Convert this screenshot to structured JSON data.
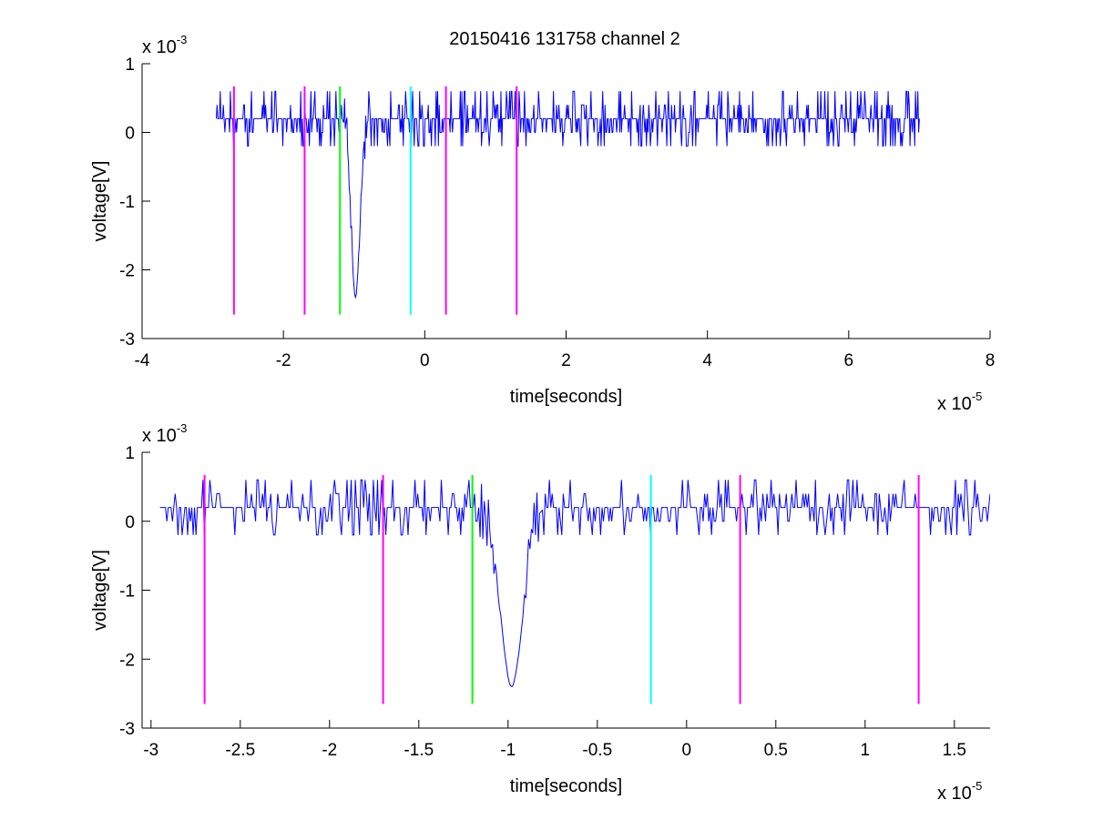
{
  "figure": {
    "title": "20150416 131758 channel 2"
  },
  "colors": {
    "signal": "#0000ff",
    "magenta": "#ff00ff",
    "green": "#00ff00",
    "cyan": "#00ffff",
    "axes": "#000000",
    "background": "#ffffff"
  },
  "chart_data": [
    {
      "type": "line",
      "title": "20150416 131758 channel 2",
      "xlabel": "time[seconds]",
      "ylabel": "voltage[V]",
      "x_exponent": "x 10",
      "x_exponent_power": "-5",
      "y_exponent": "x 10",
      "y_exponent_power": "-3",
      "xlim": [
        -4e-05,
        8e-05
      ],
      "ylim": [
        -0.003,
        0.001
      ],
      "x_ticks": [
        -4e-05,
        -2e-05,
        0,
        2e-05,
        4e-05,
        6e-05,
        8e-05
      ],
      "x_tick_labels": [
        "-4",
        "-2",
        "0",
        "2",
        "4",
        "6",
        "8"
      ],
      "y_ticks": [
        -0.003,
        -0.002,
        -0.001,
        0,
        0.001
      ],
      "y_tick_labels": [
        "-3",
        "-2",
        "-1",
        "0",
        "1"
      ],
      "grid": false,
      "signal": {
        "x_start": -2.95e-05,
        "x_end": 7e-05,
        "baseline_v": 0.0002,
        "noise_levels_v": [
          -0.0002,
          0.0,
          0.0002,
          0.0004,
          0.0006
        ],
        "spike": {
          "x": -9.8e-06,
          "min_v": -0.0024
        }
      },
      "markers": [
        {
          "x": -2.7e-05,
          "color": "magenta",
          "y_top": 0.00067,
          "y_bottom": -0.00265
        },
        {
          "x": -1.7e-05,
          "color": "magenta",
          "y_top": 0.00067,
          "y_bottom": -0.00265
        },
        {
          "x": -1.2e-05,
          "color": "green",
          "y_top": 0.00067,
          "y_bottom": -0.00265
        },
        {
          "x": -2e-06,
          "color": "cyan",
          "y_top": 0.00067,
          "y_bottom": -0.00265
        },
        {
          "x": 3e-06,
          "color": "magenta",
          "y_top": 0.00067,
          "y_bottom": -0.00265
        },
        {
          "x": 1.3e-05,
          "color": "magenta",
          "y_top": 0.00067,
          "y_bottom": -0.00265
        }
      ]
    },
    {
      "type": "line",
      "title": "",
      "xlabel": "time[seconds]",
      "ylabel": "voltage[V]",
      "x_exponent": "x 10",
      "x_exponent_power": "-5",
      "y_exponent": "x 10",
      "y_exponent_power": "-3",
      "xlim": [
        -3.05e-05,
        1.7e-05
      ],
      "ylim": [
        -0.003,
        0.001
      ],
      "x_ticks": [
        -3e-05,
        -2.5e-05,
        -2e-05,
        -1.5e-05,
        -1e-05,
        -5e-06,
        0,
        5e-06,
        1e-05,
        1.5e-05
      ],
      "x_tick_labels": [
        "-3",
        "-2.5",
        "-2",
        "-1.5",
        "-1",
        "-0.5",
        "0",
        "0.5",
        "1",
        "1.5"
      ],
      "y_ticks": [
        -0.003,
        -0.002,
        -0.001,
        0,
        0.001
      ],
      "y_tick_labels": [
        "-3",
        "-2",
        "-1",
        "0",
        "1"
      ],
      "grid": false,
      "signal": {
        "x_start": -2.95e-05,
        "x_end": 1.7e-05,
        "baseline_v": 0.0002,
        "noise_levels_v": [
          -0.0002,
          0.0,
          0.0002,
          0.0004,
          0.0006
        ],
        "spike": {
          "x": -9.8e-06,
          "min_v": -0.0024
        }
      },
      "markers": [
        {
          "x": -2.7e-05,
          "color": "magenta",
          "y_top": 0.00067,
          "y_bottom": -0.00265
        },
        {
          "x": -1.7e-05,
          "color": "magenta",
          "y_top": 0.00067,
          "y_bottom": -0.00265
        },
        {
          "x": -1.2e-05,
          "color": "green",
          "y_top": 0.00067,
          "y_bottom": -0.00265
        },
        {
          "x": -2e-06,
          "color": "cyan",
          "y_top": 0.00067,
          "y_bottom": -0.00265
        },
        {
          "x": 3e-06,
          "color": "magenta",
          "y_top": 0.00067,
          "y_bottom": -0.00265
        },
        {
          "x": 1.3e-05,
          "color": "magenta",
          "y_top": 0.00067,
          "y_bottom": -0.00265
        }
      ]
    }
  ]
}
